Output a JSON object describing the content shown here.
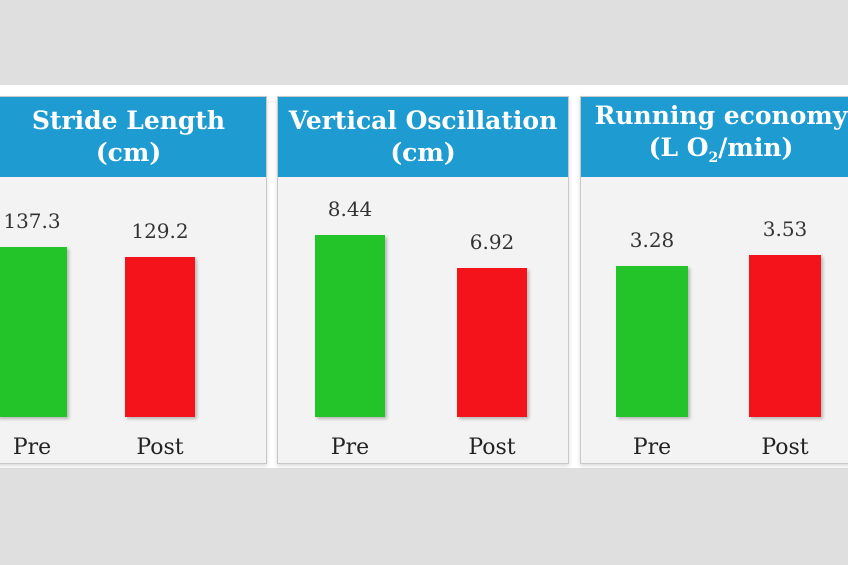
{
  "colors": {
    "pre": "#22c42a",
    "post": "#f4121b",
    "header": "#1e9bd0"
  },
  "chart_data": [
    {
      "type": "bar",
      "title_line1": "Stride Length",
      "title_line2": "(cm)",
      "categories": [
        "Pre",
        "Post"
      ],
      "values": [
        137.3,
        129.2
      ],
      "value_labels": [
        "137.3",
        "129.2"
      ]
    },
    {
      "type": "bar",
      "title_line1": "Vertical Oscillation",
      "title_line2": "(cm)",
      "categories": [
        "Pre",
        "Post"
      ],
      "values": [
        8.44,
        6.92
      ],
      "value_labels": [
        "8.44",
        "6.92"
      ]
    },
    {
      "type": "bar",
      "title_line1": "Running economy",
      "title_line2_pre": "(L O",
      "title_line2_sub": "2",
      "title_line2_post": "/min)",
      "categories": [
        "Pre",
        "Post"
      ],
      "values": [
        3.28,
        3.53
      ],
      "value_labels": [
        "3.28",
        "3.53"
      ]
    }
  ]
}
